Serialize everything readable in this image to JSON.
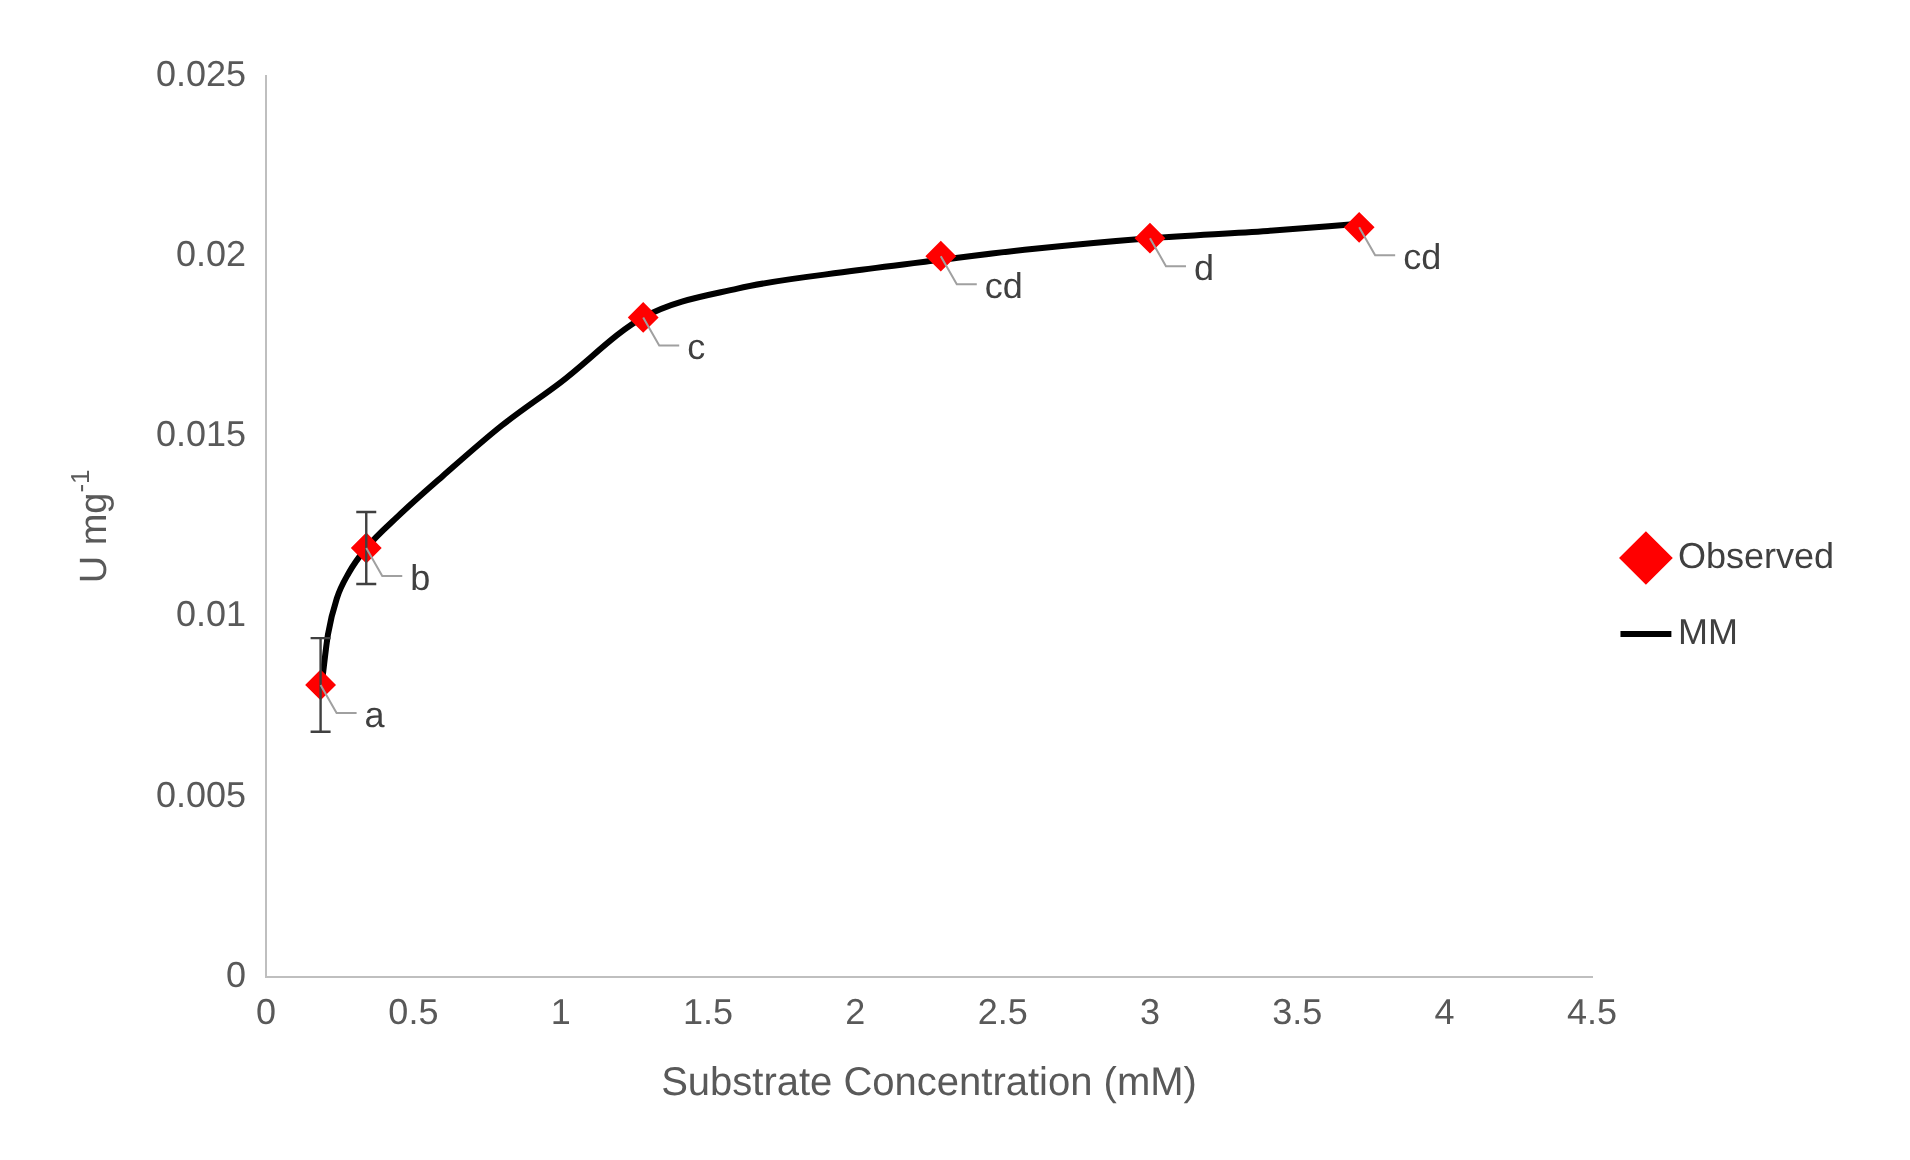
{
  "chart_data": {
    "type": "scatter",
    "xlabel": "Substrate Concentration (mM)",
    "ylabel": "U mg$^{-1}$",
    "xlim": [
      0,
      4.5
    ],
    "xticks": [
      0,
      0.5,
      1,
      1.5,
      2,
      2.5,
      3,
      3.5,
      4,
      4.5
    ],
    "ylim": [
      0,
      0.025
    ],
    "yticks": [
      0,
      0.005,
      0.01,
      0.015,
      0.02,
      0.025
    ],
    "grid": false,
    "legend": "right",
    "marker": "diamond",
    "series": [
      {
        "name": "Observed",
        "type": "scatter",
        "color": "#ff0000",
        "x": [
          0.185,
          0.34,
          1.28,
          2.29,
          3.0,
          3.71
        ],
        "values": [
          0.0081,
          0.0119,
          0.0183,
          0.02,
          0.0205,
          0.0208
        ],
        "errors": [
          0.0013,
          0.001,
          null,
          null,
          null,
          null
        ]
      },
      {
        "name": "MM",
        "type": "line",
        "color": "#000000",
        "marker": "none",
        "line_style": "solid",
        "x": [
          0.19,
          0.21,
          0.24,
          0.28,
          0.34,
          0.45,
          0.6,
          0.8,
          1.0,
          1.28,
          1.6,
          2.0,
          2.29,
          2.6,
          3.0,
          3.4,
          3.71
        ],
        "values": [
          0.0082,
          0.0095,
          0.0105,
          0.0112,
          0.0119,
          0.0128,
          0.0139,
          0.0153,
          0.0165,
          0.0183,
          0.0191,
          0.0196,
          0.0199,
          0.0202,
          0.0205,
          0.0207,
          0.0209
        ]
      }
    ],
    "annotations": [
      {
        "text": "a",
        "x": 0.185,
        "y": 0.0081
      },
      {
        "text": "b",
        "x": 0.34,
        "y": 0.0119
      },
      {
        "text": "c",
        "x": 1.28,
        "y": 0.0183
      },
      {
        "text": "cd",
        "x": 2.29,
        "y": 0.02
      },
      {
        "text": "d",
        "x": 3.0,
        "y": 0.0205
      },
      {
        "text": "cd",
        "x": 3.71,
        "y": 0.0208
      }
    ]
  }
}
